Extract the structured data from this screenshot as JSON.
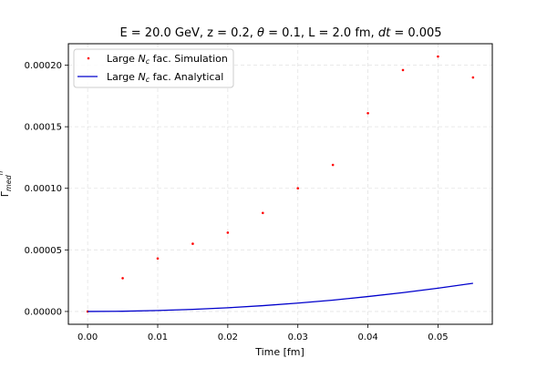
{
  "chart_data": {
    "type": "scatter",
    "title_parts": {
      "prefix": "E = 20.0 GeV, z = 0.2, ",
      "theta_symbol": "θ",
      "middle": " = 0.1, L = 2.0 fm, ",
      "dt_symbol": "dt",
      "suffix": " = 0.005"
    },
    "xlabel": "Time [fm]",
    "ylabel_base": "Γ",
    "ylabel_sub": "med",
    "ylabel_sup": "n",
    "xlim": [
      -0.00275,
      0.05775
    ],
    "ylim": [
      -1.04e-05,
      0.0002174
    ],
    "x_ticks": [
      0.0,
      0.01,
      0.02,
      0.03,
      0.04,
      0.05
    ],
    "x_tick_labels": [
      "0.00",
      "0.01",
      "0.02",
      "0.03",
      "0.04",
      "0.05"
    ],
    "y_ticks": [
      0.0,
      5e-05,
      0.0001,
      0.00015,
      0.0002
    ],
    "y_tick_labels": [
      "0.00000",
      "0.00005",
      "0.00010",
      "0.00015",
      "0.00020"
    ],
    "grid": true,
    "legend_position": "top-left",
    "series": [
      {
        "name_prefix": "Large ",
        "name_symbol": "N",
        "name_sub": "c",
        "name_suffix": " fac. Simulation",
        "kind": "scatter",
        "color": "#ff0000",
        "x": [
          0.0,
          0.005,
          0.01,
          0.015,
          0.02,
          0.025,
          0.03,
          0.035,
          0.04,
          0.045,
          0.05,
          0.055
        ],
        "y": [
          0.0,
          2.7e-05,
          4.3e-05,
          5.5e-05,
          6.4e-05,
          8e-05,
          0.0001,
          0.000119,
          0.000161,
          0.000196,
          0.000207,
          0.00019
        ]
      },
      {
        "name_prefix": "Large ",
        "name_symbol": "N",
        "name_sub": "c",
        "name_suffix": " fac. Analytical",
        "kind": "line",
        "color": "#0000cc",
        "x": [
          0.0,
          0.005,
          0.01,
          0.015,
          0.02,
          0.025,
          0.03,
          0.035,
          0.04,
          0.045,
          0.05,
          0.055
        ],
        "y": [
          0.0,
          2e-07,
          8e-07,
          1.7e-06,
          3e-06,
          4.7e-06,
          6.8e-06,
          9.2e-06,
          1.21e-05,
          1.53e-05,
          1.89e-05,
          2.29e-05
        ]
      }
    ]
  }
}
